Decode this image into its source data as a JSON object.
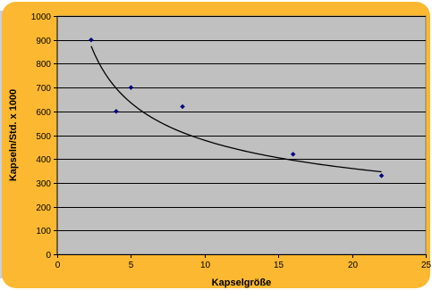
{
  "colors": {
    "frame": "#fbb830",
    "frame_shadow": "#c9cfe0",
    "plot_area": "#c0c0c0",
    "gridline": "#000000",
    "marker": "#000080",
    "trendline": "#000000"
  },
  "chart_data": {
    "type": "scatter",
    "title": "",
    "xlabel": "Kapselgröße",
    "ylabel": "Kapseln/Std. x 1000",
    "xlim": [
      0,
      25
    ],
    "ylim": [
      0,
      1000
    ],
    "x_ticks": [
      0,
      5,
      10,
      15,
      20,
      25
    ],
    "y_ticks": [
      0,
      100,
      200,
      300,
      400,
      500,
      600,
      700,
      800,
      900,
      1000
    ],
    "grid": {
      "horizontal": true,
      "vertical": false
    },
    "legend": "none",
    "series": [
      {
        "marker": "diamond",
        "x": [
          2.3,
          4.0,
          5.0,
          8.5,
          16.0,
          22.0
        ],
        "y": [
          900,
          600,
          700,
          620,
          420,
          330
        ]
      }
    ],
    "trendline": {
      "type": "power",
      "coefficient": 1230,
      "exponent": -0.41,
      "x_range": [
        2.3,
        22.0
      ]
    }
  }
}
